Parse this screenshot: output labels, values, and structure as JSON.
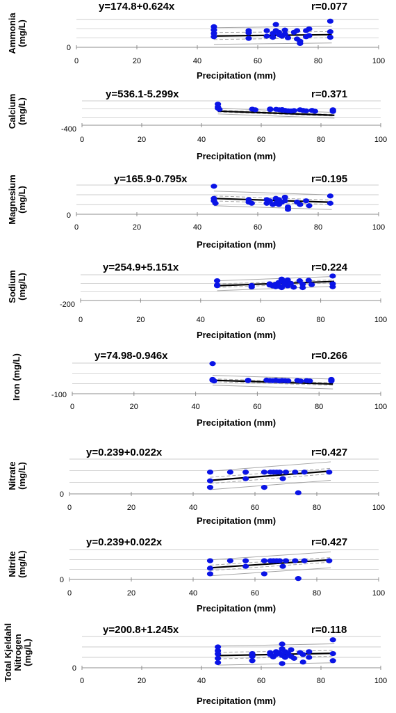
{
  "chart_data": [
    {
      "type": "scatter",
      "equation": "y=174.8+0.624x",
      "r_label": "r=0.077",
      "ylabel_lines": [
        "Ammonia",
        "(mg/L)"
      ],
      "xlabel": "Precipitation (mm)",
      "x_ticks": [
        "0",
        "20",
        "40",
        "60",
        "80",
        "100"
      ],
      "y_tick_label": "0",
      "xlim": [
        0,
        100
      ],
      "ylim": [
        0,
        500
      ],
      "fit": {
        "intercept": 174.8,
        "slope": 0.624
      },
      "ci_halfwidth": 55,
      "pi_halfwidth": 150,
      "points": [
        [
          45.5,
          370
        ],
        [
          45.5,
          310
        ],
        [
          45.5,
          250
        ],
        [
          45.5,
          190
        ],
        [
          57,
          300
        ],
        [
          57,
          260
        ],
        [
          57,
          160
        ],
        [
          63,
          300
        ],
        [
          63,
          200
        ],
        [
          65,
          250
        ],
        [
          65,
          180
        ],
        [
          66,
          410
        ],
        [
          66,
          300
        ],
        [
          67,
          270
        ],
        [
          67,
          230
        ],
        [
          68,
          200
        ],
        [
          69,
          310
        ],
        [
          69,
          240
        ],
        [
          70,
          170
        ],
        [
          72,
          270
        ],
        [
          73,
          300
        ],
        [
          73,
          150
        ],
        [
          74,
          110
        ],
        [
          74,
          70
        ],
        [
          76,
          300
        ],
        [
          76,
          190
        ],
        [
          77,
          330
        ],
        [
          77,
          210
        ],
        [
          84,
          470
        ],
        [
          84,
          280
        ],
        [
          84,
          180
        ]
      ]
    },
    {
      "type": "scatter",
      "equation": "y=536.1-5.299x",
      "r_label": "r=0.371",
      "ylabel_lines": [
        "Calcium",
        "(mg/L)"
      ],
      "xlabel": "Precipitation (mm)",
      "x_ticks": [
        "0",
        "20",
        "40",
        "60",
        "80",
        "100"
      ],
      "y_tick_label": "-400",
      "xlim": [
        0,
        100
      ],
      "ylim": [
        -400,
        800
      ],
      "fit": {
        "intercept": 536.1,
        "slope": -5.299
      },
      "ci_halfwidth": 40,
      "pi_halfwidth": 140,
      "points": [
        [
          45.5,
          640
        ],
        [
          45.5,
          500
        ],
        [
          45.5,
          440
        ],
        [
          46,
          380
        ],
        [
          57,
          390
        ],
        [
          58,
          360
        ],
        [
          63,
          400
        ],
        [
          63,
          370
        ],
        [
          65,
          380
        ],
        [
          66,
          360
        ],
        [
          67,
          370
        ],
        [
          67,
          340
        ],
        [
          68,
          330
        ],
        [
          69,
          310
        ],
        [
          70,
          300
        ],
        [
          71,
          320
        ],
        [
          73,
          360
        ],
        [
          74,
          330
        ],
        [
          75,
          310
        ],
        [
          77,
          330
        ],
        [
          78,
          290
        ],
        [
          84,
          360
        ],
        [
          84,
          320
        ],
        [
          84,
          280
        ]
      ]
    },
    {
      "type": "scatter",
      "equation": "y=165.9-0.795x",
      "r_label": "r=0.195",
      "ylabel_lines": [
        "Magnesium",
        "(mg/L)"
      ],
      "xlabel": "Precipitation (mm)",
      "x_ticks": [
        "0",
        "20",
        "40",
        "60",
        "80",
        "100"
      ],
      "y_tick_label": "0",
      "xlim": [
        0,
        100
      ],
      "ylim": [
        0,
        240
      ],
      "fit": {
        "intercept": 165.9,
        "slope": -0.795
      },
      "ci_halfwidth": 18,
      "pi_halfwidth": 60,
      "points": [
        [
          45.5,
          230
        ],
        [
          45.5,
          130
        ],
        [
          45.5,
          110
        ],
        [
          46,
          90
        ],
        [
          57,
          120
        ],
        [
          57,
          100
        ],
        [
          58,
          90
        ],
        [
          63,
          120
        ],
        [
          63,
          90
        ],
        [
          64,
          110
        ],
        [
          65,
          80
        ],
        [
          66,
          130
        ],
        [
          66,
          90
        ],
        [
          67,
          120
        ],
        [
          67,
          80
        ],
        [
          68,
          100
        ],
        [
          69,
          140
        ],
        [
          69,
          110
        ],
        [
          70,
          60
        ],
        [
          70,
          40
        ],
        [
          73,
          100
        ],
        [
          74,
          80
        ],
        [
          76,
          110
        ],
        [
          77,
          70
        ],
        [
          84,
          150
        ],
        [
          84,
          90
        ]
      ]
    },
    {
      "type": "scatter",
      "equation": "y=254.9+5.151x",
      "r_label": "r=0.224",
      "ylabel_lines": [
        "Sodium",
        "(mg/L)"
      ],
      "xlabel": "Precipitation (mm)",
      "x_ticks": [
        "0",
        "20",
        "40",
        "60",
        "80",
        "100"
      ],
      "y_tick_label": "-200",
      "xlim": [
        0,
        100
      ],
      "ylim": [
        -200,
        1000
      ],
      "fit": {
        "intercept": 254.9,
        "slope": 5.151
      },
      "ci_halfwidth": 70,
      "pi_halfwidth": 230,
      "points": [
        [
          45.5,
          720
        ],
        [
          45.5,
          520
        ],
        [
          45.5,
          490
        ],
        [
          57,
          500
        ],
        [
          57,
          430
        ],
        [
          63,
          580
        ],
        [
          63,
          520
        ],
        [
          64,
          480
        ],
        [
          65,
          560
        ],
        [
          65,
          440
        ],
        [
          66,
          640
        ],
        [
          66,
          470
        ],
        [
          67,
          800
        ],
        [
          67,
          720
        ],
        [
          67,
          400
        ],
        [
          68,
          620
        ],
        [
          68,
          540
        ],
        [
          69,
          760
        ],
        [
          69,
          480
        ],
        [
          70,
          600
        ],
        [
          71,
          420
        ],
        [
          73,
          720
        ],
        [
          74,
          560
        ],
        [
          74,
          400
        ],
        [
          76,
          740
        ],
        [
          77,
          540
        ],
        [
          84,
          940
        ],
        [
          84,
          580
        ],
        [
          84,
          440
        ]
      ]
    },
    {
      "type": "scatter",
      "equation": "y=74.98-0.946x",
      "r_label": "r=0.266",
      "ylabel_lines": [
        "Iron (mg/L)"
      ],
      "xlabel": "Precipitation (mm)",
      "x_ticks": [
        "0",
        "20",
        "40",
        "60",
        "80",
        "100"
      ],
      "y_tick_label": "-100",
      "xlim": [
        0,
        100
      ],
      "ylim": [
        -100,
        200
      ],
      "fit": {
        "intercept": 74.98,
        "slope": -0.946
      },
      "ci_halfwidth": 12,
      "pi_halfwidth": 48,
      "points": [
        [
          45.5,
          195
        ],
        [
          45.5,
          40
        ],
        [
          45.5,
          32
        ],
        [
          46,
          25
        ],
        [
          57,
          32
        ],
        [
          57,
          28
        ],
        [
          63,
          33
        ],
        [
          64,
          30
        ],
        [
          65,
          28
        ],
        [
          66,
          32
        ],
        [
          67,
          26
        ],
        [
          68,
          30
        ],
        [
          69,
          28
        ],
        [
          70,
          26
        ],
        [
          73,
          30
        ],
        [
          74,
          24
        ],
        [
          76,
          28
        ],
        [
          77,
          25
        ],
        [
          84,
          40
        ],
        [
          84,
          32
        ],
        [
          84,
          25
        ]
      ]
    },
    {
      "type": "scatter",
      "equation": "y=0.239+0.022x",
      "r_label": "r=0.427",
      "ylabel_lines": [
        "Nitrate",
        "(mg/L)"
      ],
      "xlabel": "Precipitation (mm)",
      "x_ticks": [
        "0",
        "20",
        "40",
        "60",
        "80",
        "100"
      ],
      "y_tick_label": "0",
      "xlim": [
        0,
        100
      ],
      "ylim": [
        0,
        3.2
      ],
      "fit": {
        "intercept": 0.239,
        "slope": 0.022
      },
      "ci_halfwidth": 0.25,
      "pi_halfwidth": 0.85,
      "points": [
        [
          45.5,
          2.0
        ],
        [
          45.5,
          1.2
        ],
        [
          45.5,
          0.6
        ],
        [
          52,
          2.0
        ],
        [
          57,
          2.0
        ],
        [
          57,
          1.4
        ],
        [
          63,
          2.0
        ],
        [
          63,
          0.6
        ],
        [
          65,
          2.0
        ],
        [
          66,
          2.0
        ],
        [
          67,
          2.0
        ],
        [
          68,
          2.0
        ],
        [
          69,
          1.4
        ],
        [
          70,
          2.0
        ],
        [
          73,
          2.0
        ],
        [
          74,
          0.1
        ],
        [
          76,
          2.0
        ],
        [
          84,
          2.0
        ]
      ]
    },
    {
      "type": "scatter",
      "equation": "y=0.239+0.022x",
      "r_label": "r=0.427",
      "ylabel_lines": [
        "Nitrite",
        "(mg/L)"
      ],
      "xlabel": "Precipitation (mm)",
      "x_ticks": [
        "0",
        "20",
        "40",
        "60",
        "80",
        "100"
      ],
      "y_tick_label": "0",
      "xlim": [
        0,
        100
      ],
      "ylim": [
        0,
        3.2
      ],
      "fit": {
        "intercept": 0.239,
        "slope": 0.022
      },
      "ci_halfwidth": 0.25,
      "pi_halfwidth": 0.85,
      "points": [
        [
          45.5,
          2.0
        ],
        [
          45.5,
          1.2
        ],
        [
          45.5,
          0.6
        ],
        [
          52,
          2.0
        ],
        [
          57,
          2.0
        ],
        [
          57,
          1.4
        ],
        [
          63,
          2.0
        ],
        [
          63,
          0.6
        ],
        [
          65,
          2.0
        ],
        [
          66,
          2.0
        ],
        [
          67,
          2.0
        ],
        [
          68,
          2.0
        ],
        [
          69,
          1.4
        ],
        [
          70,
          2.0
        ],
        [
          73,
          2.0
        ],
        [
          74,
          0.1
        ],
        [
          76,
          2.0
        ],
        [
          84,
          2.0
        ]
      ]
    },
    {
      "type": "scatter",
      "equation": "y=200.8+1.245x",
      "r_label": "r=0.118",
      "ylabel_lines": [
        "Total Kjeldahl",
        "Nitrogen",
        "(mg/L)"
      ],
      "xlabel": "Precipitation (mm)",
      "x_ticks": [
        "0",
        "20",
        "40",
        "60",
        "80",
        "100"
      ],
      "y_tick_label": "0",
      "xlim": [
        0,
        100
      ],
      "ylim": [
        0,
        660
      ],
      "fit": {
        "intercept": 200.8,
        "slope": 1.245
      },
      "ci_halfwidth": 60,
      "pi_halfwidth": 200,
      "points": [
        [
          45.5,
          440
        ],
        [
          45.5,
          360
        ],
        [
          45.5,
          290
        ],
        [
          45.5,
          200
        ],
        [
          45.5,
          110
        ],
        [
          57,
          300
        ],
        [
          57,
          240
        ],
        [
          57,
          150
        ],
        [
          63,
          320
        ],
        [
          63,
          280
        ],
        [
          64,
          230
        ],
        [
          65,
          340
        ],
        [
          65,
          280
        ],
        [
          66,
          320
        ],
        [
          67,
          500
        ],
        [
          67,
          400
        ],
        [
          67,
          260
        ],
        [
          67,
          90
        ],
        [
          68,
          340
        ],
        [
          68,
          220
        ],
        [
          69,
          300
        ],
        [
          70,
          380
        ],
        [
          70,
          240
        ],
        [
          71,
          200
        ],
        [
          73,
          320
        ],
        [
          74,
          280
        ],
        [
          74,
          120
        ],
        [
          76,
          340
        ],
        [
          76,
          220
        ],
        [
          84,
          590
        ],
        [
          84,
          300
        ],
        [
          84,
          150
        ]
      ]
    }
  ]
}
